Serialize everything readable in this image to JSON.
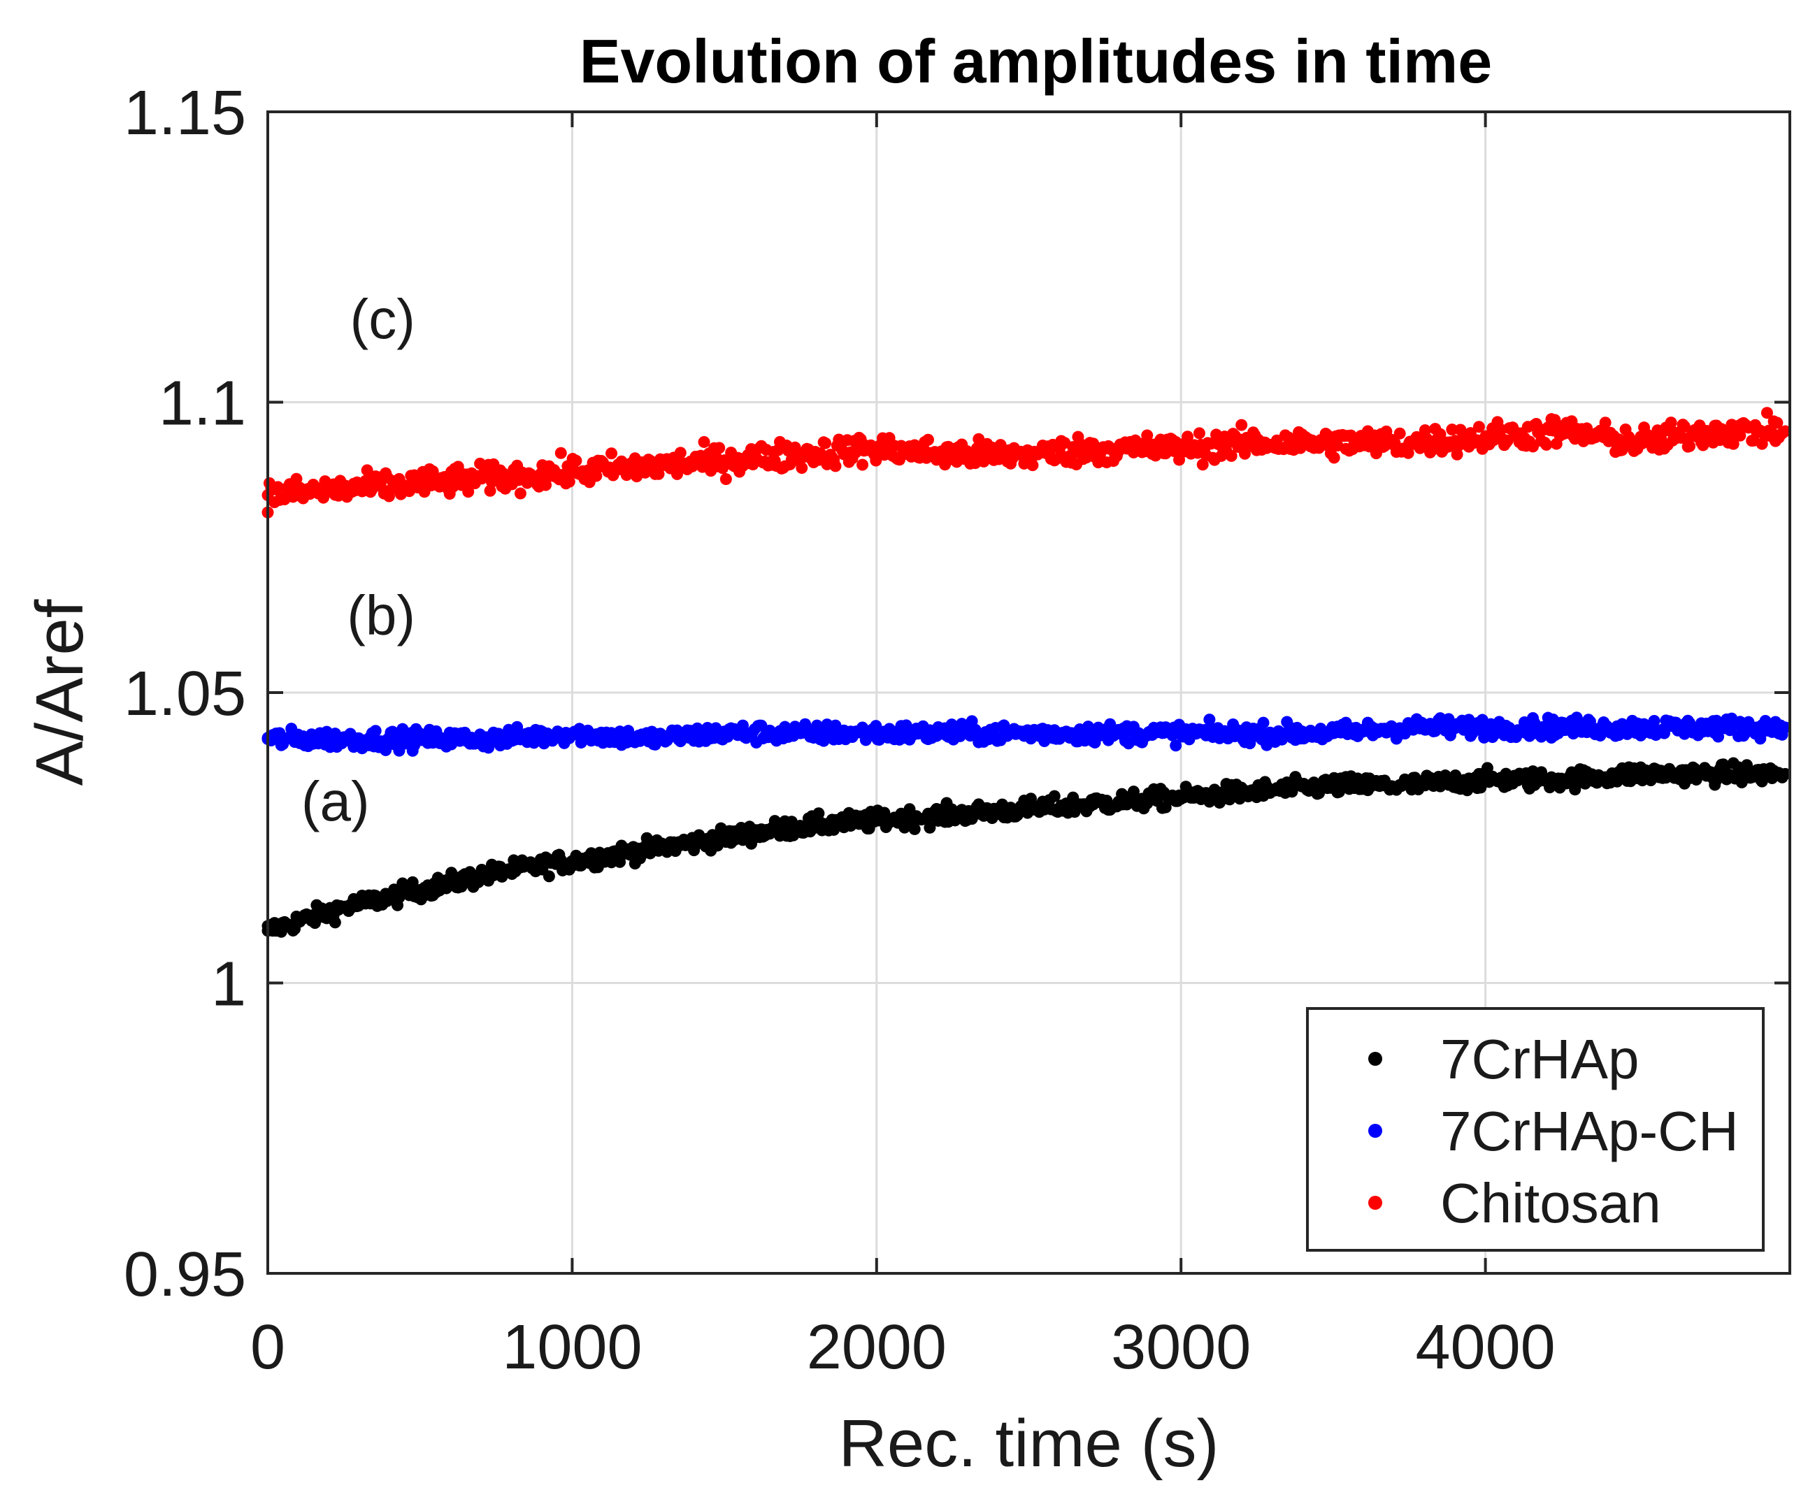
{
  "chart_data": {
    "type": "scatter",
    "title": "Evolution of amplitudes in time",
    "xlabel": "Rec. time (s)",
    "ylabel": "A/Aref",
    "xlim": [
      0,
      5000
    ],
    "ylim": [
      0.95,
      1.15
    ],
    "xticks": [
      0,
      1000,
      2000,
      3000,
      4000
    ],
    "xtick_labels": [
      "0",
      "1000",
      "2000",
      "3000",
      "4000"
    ],
    "yticks": [
      0.95,
      1.0,
      1.05,
      1.1,
      1.15
    ],
    "ytick_labels": [
      "0.95",
      "1",
      "1.05",
      "1.1",
      "1.15"
    ],
    "grid": true,
    "legend_position": "bottom-right",
    "annotations": [
      {
        "text": "(c)",
        "x": 270,
        "y": 1.111
      },
      {
        "text": "(b)",
        "x": 260,
        "y": 1.06
      },
      {
        "text": "(a)",
        "x": 110,
        "y": 1.028
      }
    ],
    "series": [
      {
        "name": "7CrHAp",
        "color": "#000000",
        "x": [
          0,
          250,
          500,
          750,
          1000,
          1250,
          1500,
          1750,
          2000,
          2250,
          2500,
          2750,
          3000,
          3250,
          3500,
          3750,
          4000,
          4250,
          4500,
          4750,
          5000
        ],
        "y": [
          1.009,
          1.013,
          1.016,
          1.019,
          1.021,
          1.023,
          1.025,
          1.027,
          1.028,
          1.029,
          1.03,
          1.031,
          1.032,
          1.033,
          1.034,
          1.034,
          1.035,
          1.035,
          1.036,
          1.036,
          1.036
        ]
      },
      {
        "name": "7CrHAp-CH",
        "color": "#0000ff",
        "x": [
          0,
          250,
          500,
          750,
          1000,
          1250,
          1500,
          1750,
          2000,
          2250,
          2500,
          2750,
          3000,
          3250,
          3500,
          3750,
          4000,
          4250,
          4500,
          4750,
          5000
        ],
        "y": [
          1.042,
          1.042,
          1.042,
          1.042,
          1.043,
          1.042,
          1.043,
          1.043,
          1.043,
          1.043,
          1.043,
          1.043,
          1.043,
          1.043,
          1.043,
          1.044,
          1.044,
          1.044,
          1.044,
          1.044,
          1.044
        ]
      },
      {
        "name": "Chitosan",
        "color": "#ff0000",
        "x": [
          0,
          250,
          500,
          750,
          1000,
          1250,
          1500,
          1750,
          2000,
          2250,
          2500,
          2750,
          3000,
          3250,
          3500,
          3750,
          4000,
          4250,
          4500,
          4750,
          5000
        ],
        "y": [
          1.084,
          1.085,
          1.086,
          1.087,
          1.088,
          1.089,
          1.09,
          1.091,
          1.092,
          1.091,
          1.091,
          1.092,
          1.092,
          1.093,
          1.093,
          1.093,
          1.094,
          1.095,
          1.093,
          1.095,
          1.095
        ]
      }
    ]
  }
}
